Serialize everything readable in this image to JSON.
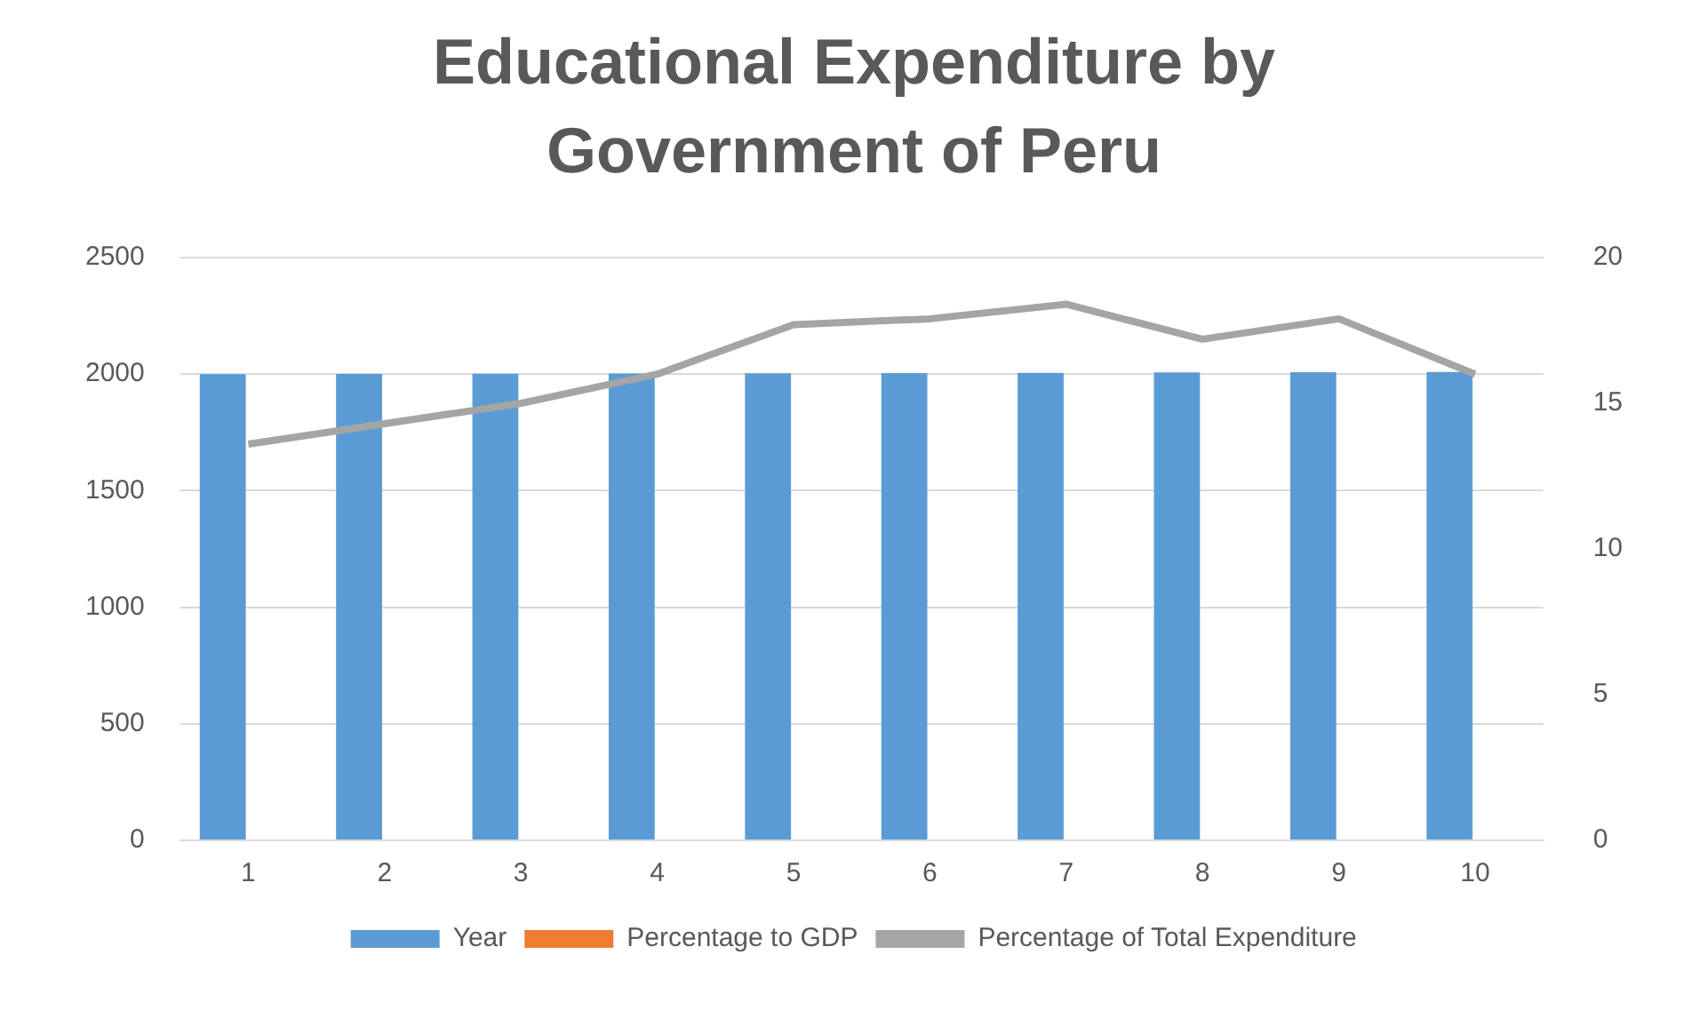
{
  "chart_data": {
    "type": "bar",
    "title": "Educational Expenditure by Government of Peru",
    "categories": [
      "1",
      "2",
      "3",
      "4",
      "5",
      "6",
      "7",
      "8",
      "9",
      "10"
    ],
    "series": [
      {
        "name": "Year",
        "color": "#5b9bd5",
        "values": [
          2000,
          2001,
          2002,
          2003,
          2004,
          2005,
          2006,
          2007,
          2008,
          2009
        ]
      },
      {
        "name": "Percentage to GDP",
        "color": "#ed7d31",
        "values": [
          null,
          null,
          null,
          null,
          null,
          null,
          null,
          null,
          null,
          null
        ]
      },
      {
        "name": "Percentage of Total Expenditure",
        "type": "line",
        "axis": "y2",
        "color": "#a5a5a5",
        "values": [
          13.6,
          14.3,
          15.0,
          16.0,
          17.7,
          17.9,
          18.4,
          17.2,
          17.9,
          16.0
        ]
      }
    ],
    "ylim": [
      0,
      2500
    ],
    "yticks": [
      0,
      500,
      1000,
      1500,
      2000,
      2500
    ],
    "y2lim": [
      0,
      20
    ],
    "y2ticks": [
      0,
      5,
      10,
      15,
      20
    ],
    "grid": "y",
    "legend": "bottom",
    "marker": "none"
  }
}
